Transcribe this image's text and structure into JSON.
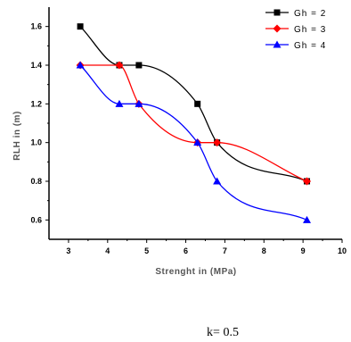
{
  "chart_data": {
    "type": "line",
    "title": "",
    "xlabel": "Strenght in (MPa)",
    "ylabel": "RLH in (m)",
    "xlim": [
      2.5,
      10
    ],
    "ylim": [
      0.5,
      1.7
    ],
    "xticks": [
      3,
      4,
      5,
      6,
      7,
      8,
      9,
      10
    ],
    "yticks": [
      0.6,
      0.8,
      1.0,
      1.2,
      1.4,
      1.6
    ],
    "yticklabels": [
      "0.6",
      "0.8",
      "1.0",
      "1.2",
      "1.4",
      "1.6"
    ],
    "grid": false,
    "legend_position": "top-right",
    "smooth": true,
    "series": [
      {
        "name": "Gh = 2",
        "color": "#000000",
        "marker": "square",
        "x": [
          3.3,
          4.3,
          4.8,
          6.3,
          6.8,
          9.1
        ],
        "y": [
          1.6,
          1.4,
          1.4,
          1.2,
          1.0,
          0.8
        ]
      },
      {
        "name": "Gh = 3",
        "color": "#ff0000",
        "marker": "diamond",
        "x": [
          3.3,
          4.3,
          4.8,
          6.3,
          6.8,
          9.1
        ],
        "y": [
          1.4,
          1.4,
          1.2,
          1.0,
          1.0,
          0.8
        ]
      },
      {
        "name": "Gh = 4",
        "color": "#0000ff",
        "marker": "triangle",
        "x": [
          3.3,
          4.3,
          4.8,
          6.3,
          6.8,
          9.1
        ],
        "y": [
          1.4,
          1.2,
          1.2,
          1.0,
          0.8,
          0.6
        ]
      }
    ],
    "caption": "k= 0.5"
  }
}
